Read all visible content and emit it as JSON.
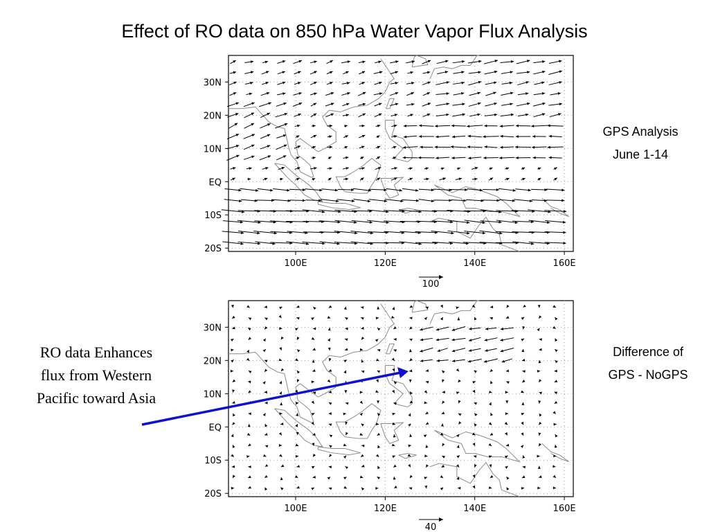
{
  "slide": {
    "title": "Effect of RO data on 850 hPa Water Vapor Flux Analysis"
  },
  "panels": [
    {
      "id": "gps-analysis",
      "side_label_lines": [
        "GPS Analysis",
        "June 1-14"
      ],
      "x_ticks": [
        "100E",
        "120E",
        "140E",
        "160E"
      ],
      "y_ticks": [
        "30N",
        "20N",
        "10N",
        "EQ",
        "10S",
        "20S"
      ],
      "reference_vector_label": "100"
    },
    {
      "id": "difference",
      "side_label_lines": [
        "Difference of",
        "GPS - NoGPS"
      ],
      "x_ticks": [
        "100E",
        "120E",
        "140E",
        "160E"
      ],
      "y_ticks": [
        "30N",
        "20N",
        "10N",
        "EQ",
        "10S",
        "20S"
      ],
      "reference_vector_label": "40"
    }
  ],
  "annotation": {
    "lines": [
      "RO data Enhances",
      "flux from Western",
      "Pacific toward Asia"
    ],
    "arrow_color": "#1010d0"
  },
  "colors": {
    "coastline": "#8a8a8a",
    "grid": "#9a9a9a",
    "vectors": "#000000"
  }
}
